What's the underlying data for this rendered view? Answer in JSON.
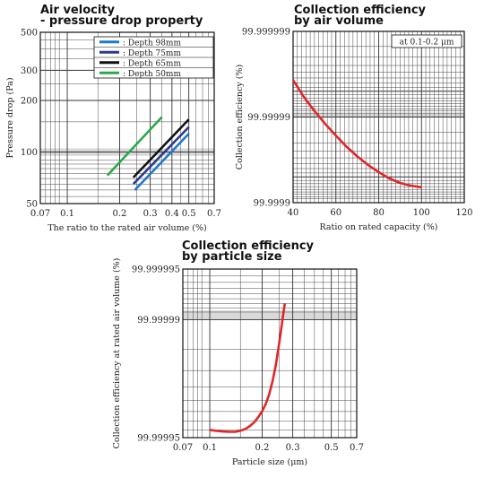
{
  "colors": {
    "accent_red": "#e0262b",
    "grid": "#333333",
    "band": "#d9d9d9"
  },
  "chart_data": [
    {
      "id": "pressure",
      "type": "line",
      "title_lines": [
        "Air velocity",
        "- pressure drop property"
      ],
      "xlabel": "The ratio to the rated air volume (%)",
      "ylabel": "Pressure drop (Pa)",
      "x_scale": "log",
      "y_scale": "log",
      "xlim": [
        0.07,
        0.7
      ],
      "ylim": [
        50,
        500
      ],
      "x_ticks": [
        0.07,
        0.1,
        0.2,
        0.3,
        0.4,
        0.5,
        0.7
      ],
      "x_tick_labels": [
        "0.07",
        "0.1",
        "0.2",
        "0.3",
        "0.4",
        "0.5",
        "0.7"
      ],
      "y_ticks": [
        50,
        100,
        200,
        300,
        500
      ],
      "y_tick_labels": [
        "50",
        "100",
        "200",
        "300",
        "500"
      ],
      "grid": true,
      "legend_position": "top-right",
      "series": [
        {
          "name": ": Depth 98mm",
          "color": "#1f78c8",
          "x": [
            0.245,
            0.5
          ],
          "y": [
            60,
            128
          ]
        },
        {
          "name": ": Depth 75mm",
          "color": "#2d3a8c",
          "x": [
            0.24,
            0.5
          ],
          "y": [
            65,
            140
          ]
        },
        {
          "name": ": Depth 65mm",
          "color": "#111111",
          "x": [
            0.24,
            0.5
          ],
          "y": [
            71,
            155
          ]
        },
        {
          "name": ": Depth 50mm",
          "color": "#2aa84a",
          "x": [
            0.17,
            0.35
          ],
          "y": [
            73,
            160
          ]
        }
      ]
    },
    {
      "id": "airvolume",
      "type": "line",
      "title_lines": [
        "Collection efficiency",
        "by air volume"
      ],
      "xlabel": "Ratio on rated capacity (%)",
      "ylabel": "Collection efficiency (%)",
      "x_scale": "linear",
      "y_scale": "log-penetration",
      "xlim": [
        40,
        120
      ],
      "ylim": [
        99.9999,
        99.999999
      ],
      "x_ticks": [
        40,
        60,
        80,
        100,
        120
      ],
      "x_tick_labels": [
        "40",
        "60",
        "80",
        "100",
        "120"
      ],
      "y_ticks": [
        99.9999,
        99.99999,
        99.999999
      ],
      "y_tick_labels": [
        "99.9999",
        "99.99999",
        "99.999999"
      ],
      "grid": true,
      "annotation": "at 0.1-0.2 μm",
      "series": [
        {
          "name": "",
          "color": "#e0262b",
          "x": [
            40,
            45,
            50,
            55,
            60,
            65,
            70,
            75,
            80,
            85,
            90,
            95,
            100
          ],
          "y": [
            99.9999963,
            99.9999942,
            99.9999915,
            99.999988,
            99.9999835,
            99.9999778,
            99.9999712,
            99.9999638,
            99.999956,
            99.9999478,
            99.9999412,
            99.9999367,
            99.999934
          ]
        }
      ]
    },
    {
      "id": "particle",
      "type": "line",
      "title_lines": [
        "Collection efficiency",
        "by particle size"
      ],
      "xlabel": "Particle size (μm)",
      "ylabel": "Collection efficiency at rated air volume (%)",
      "x_scale": "log",
      "y_scale": "log-penetration",
      "xlim": [
        0.07,
        0.7
      ],
      "ylim": [
        99.99995,
        99.999995
      ],
      "x_ticks": [
        0.07,
        0.1,
        0.2,
        0.3,
        0.5,
        0.7
      ],
      "x_tick_labels": [
        "0.07",
        "0.1",
        "0.2",
        "0.3",
        "0.5",
        "0.7"
      ],
      "y_ticks": [
        99.99995,
        99.99999,
        99.999995
      ],
      "y_tick_labels": [
        "99.99995",
        "99.99999",
        "99.999995"
      ],
      "grid": true,
      "series": [
        {
          "name": "",
          "color": "#e0262b",
          "x": [
            0.1,
            0.11,
            0.12,
            0.13,
            0.14,
            0.15,
            0.16,
            0.17,
            0.18,
            0.19,
            0.2,
            0.21,
            0.22,
            0.23,
            0.24,
            0.25,
            0.26,
            0.27
          ],
          "y": [
            99.999955,
            99.9999544,
            99.999954,
            99.9999538,
            99.9999538,
            99.9999545,
            99.9999556,
            99.9999573,
            99.9999595,
            99.9999622,
            99.9999652,
            99.9999685,
            99.9999725,
            99.999977,
            99.9999815,
            99.999986,
            99.9999895,
            99.999992
          ]
        }
      ]
    }
  ]
}
